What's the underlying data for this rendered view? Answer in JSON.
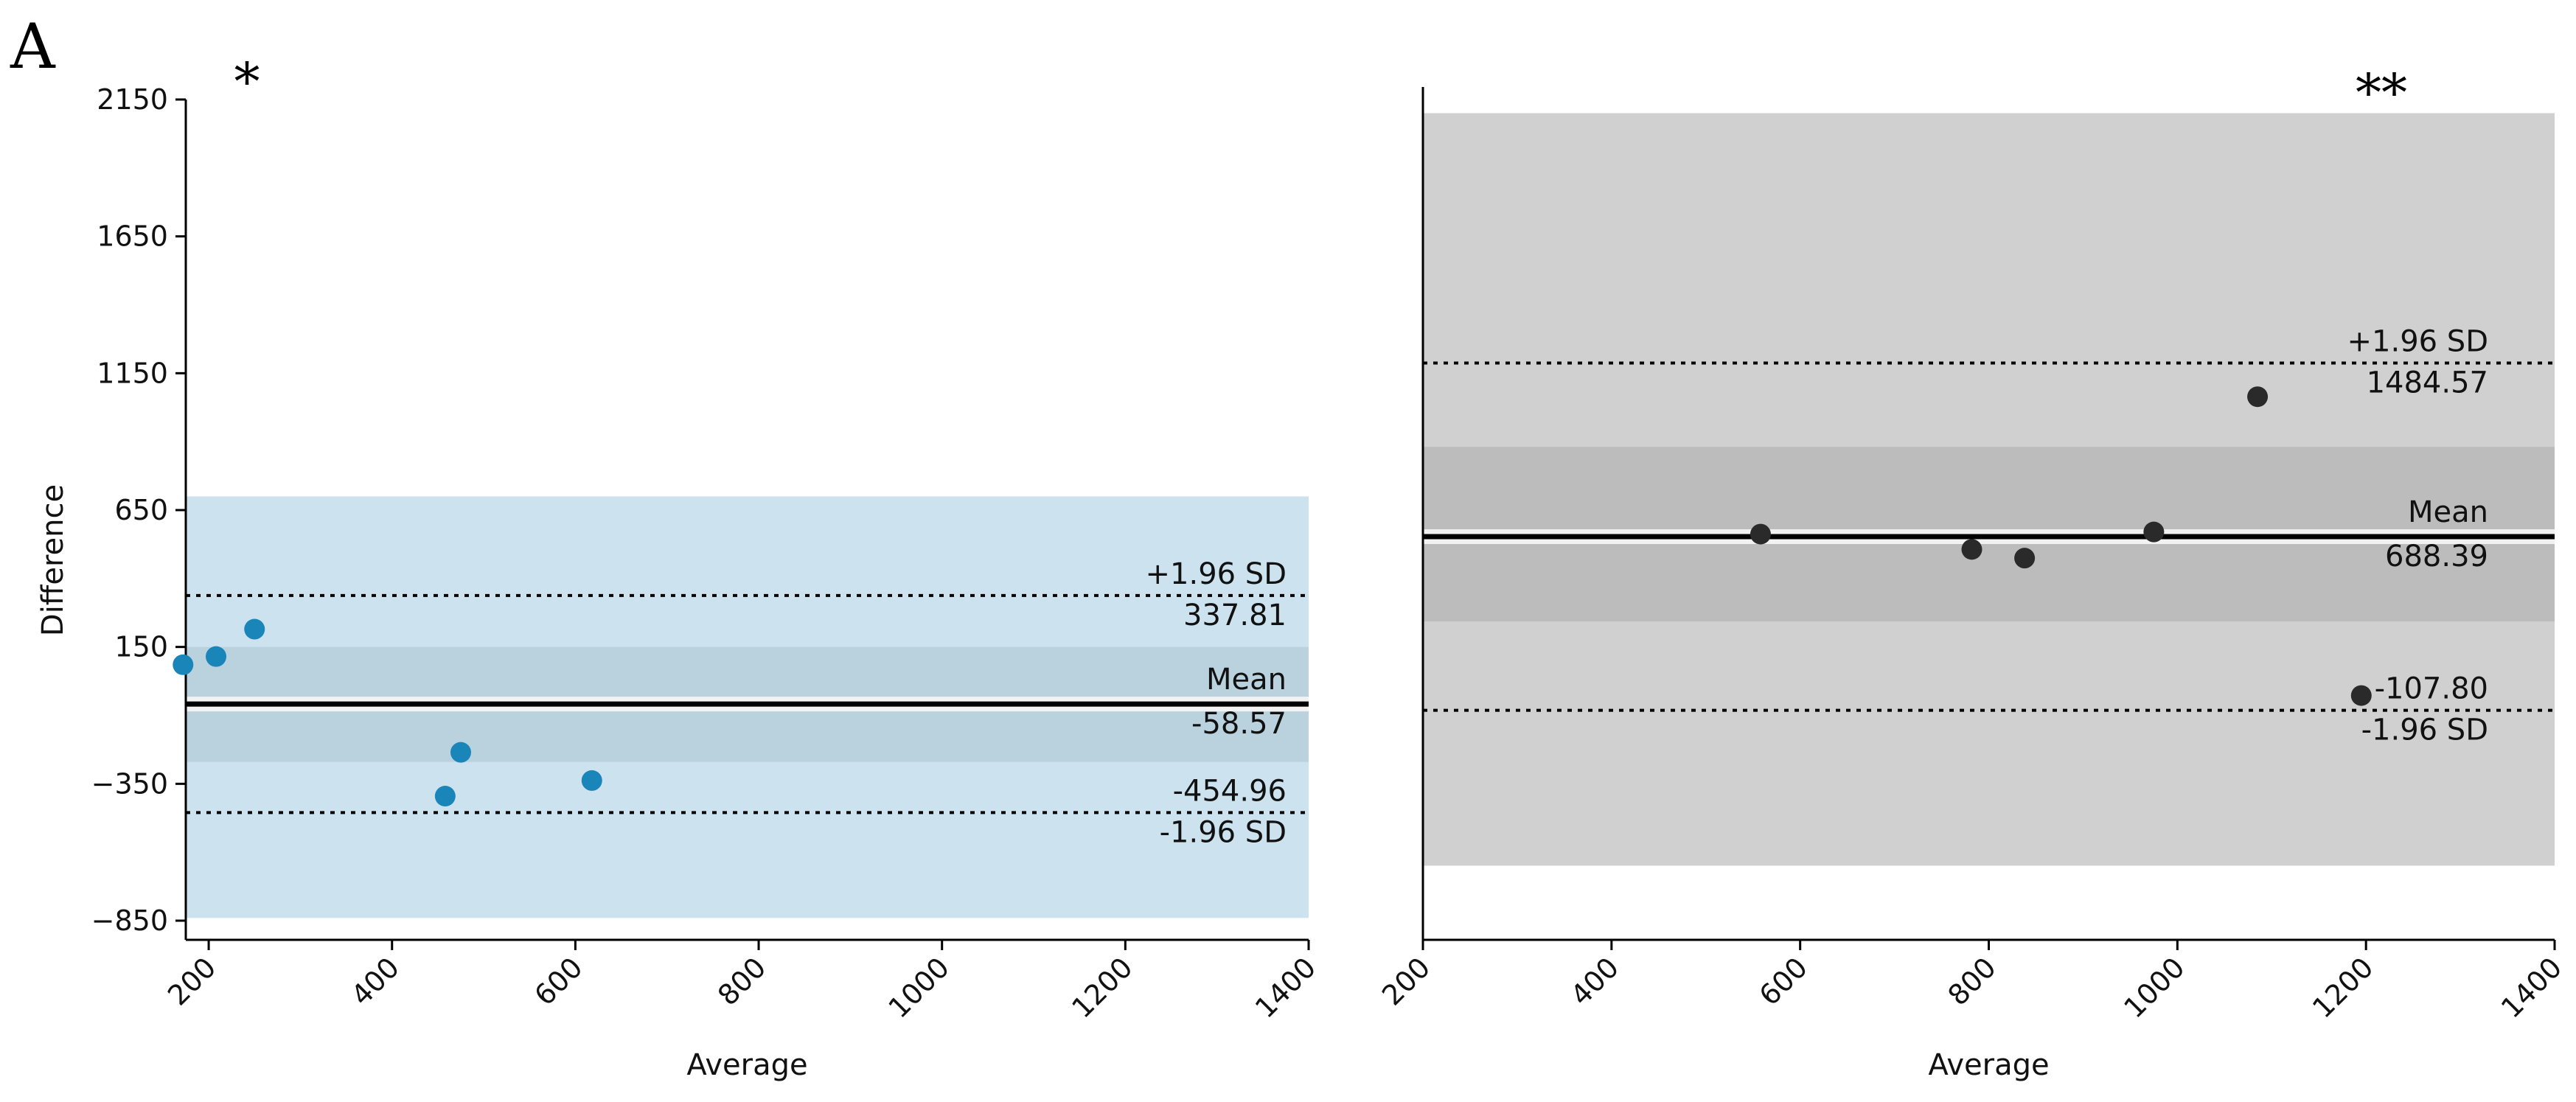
{
  "panel_label": "A",
  "chart_data": [
    {
      "type": "scatter",
      "significance": "*",
      "xlabel": "Average",
      "ylabel": "Difference",
      "xlim": [
        175,
        1400
      ],
      "ylim": [
        -920,
        2150
      ],
      "x_ticks": [
        "200",
        "400",
        "600",
        "800",
        "1000",
        "1200",
        "1400"
      ],
      "y_ticks": [
        "2150",
        "1650",
        "1150",
        "650",
        "150",
        "−350",
        "−850"
      ],
      "points": [
        {
          "x": 172,
          "y": 85
        },
        {
          "x": 208,
          "y": 115
        },
        {
          "x": 250,
          "y": 215
        },
        {
          "x": 458,
          "y": -395
        },
        {
          "x": 475,
          "y": -235
        },
        {
          "x": 618,
          "y": -338
        }
      ],
      "mean": -58.57,
      "upper_loa": 337.81,
      "lower_loa": -454.96,
      "mean_label": "Mean",
      "mean_value_label": "-58.57",
      "upper_label": "+1.96 SD",
      "upper_value_label": "337.81",
      "lower_label": "-1.96 SD",
      "lower_value_label": "-454.96",
      "outer_band": [
        -840,
        700
      ],
      "mean_band": [
        -270,
        150
      ],
      "point_color": "#1a85b9",
      "band_color": "#cce3ef",
      "inner_band_color": "#b9d2de"
    },
    {
      "type": "scatter",
      "significance": "**",
      "xlabel": "Average",
      "ylabel": "",
      "xlim": [
        200,
        1400
      ],
      "ylim": [
        -1160,
        2750
      ],
      "x_ticks": [
        "200",
        "400",
        "600",
        "800",
        "1000",
        "1200",
        "1400"
      ],
      "y_ticks": [],
      "points": [
        {
          "x": 558,
          "y": 700
        },
        {
          "x": 782,
          "y": 630
        },
        {
          "x": 838,
          "y": 590
        },
        {
          "x": 975,
          "y": 710
        },
        {
          "x": 1085,
          "y": 1330
        },
        {
          "x": 1195,
          "y": -40
        }
      ],
      "mean": 688.39,
      "upper_loa": 1484.57,
      "lower_loa": -107.8,
      "mean_label": "Mean",
      "mean_value_label": "688.39",
      "upper_label": "+1.96 SD",
      "upper_value_label": "1484.57",
      "lower_label": "-1.96 SD",
      "lower_value_label": "-107.80",
      "outer_band": [
        -820,
        2630
      ],
      "mean_band": [
        300,
        1100
      ],
      "point_color": "#2a2a2a",
      "band_color": "#d0d0d0",
      "inner_band_color": "#bcbcbc"
    }
  ]
}
